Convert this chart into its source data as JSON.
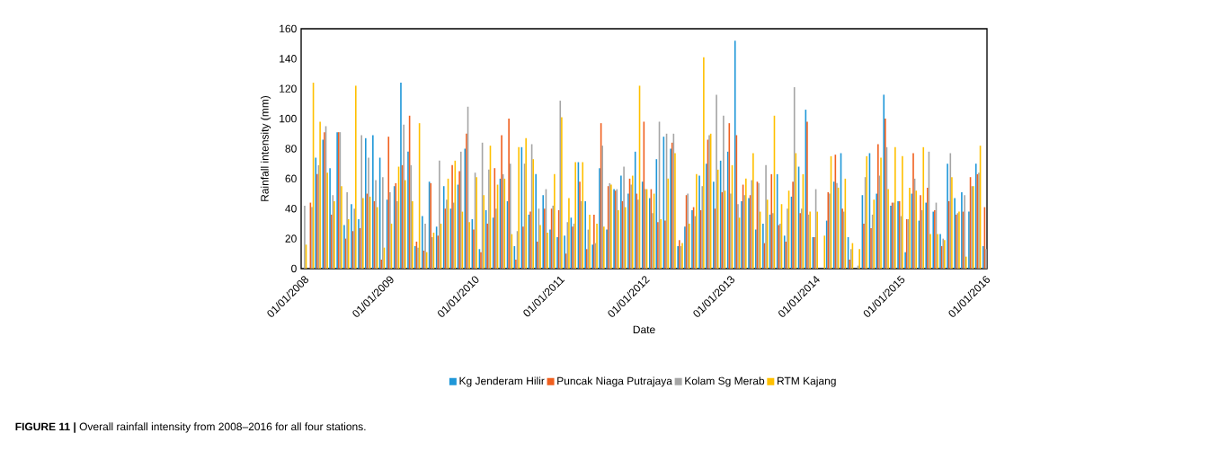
{
  "chart_data": {
    "type": "bar",
    "xlabel": "Date",
    "ylabel": "Rainfall intensity (mm)",
    "x": [
      "2008-01",
      "2008-02",
      "2008-03",
      "2008-04",
      "2008-05",
      "2008-06",
      "2008-07",
      "2008-08",
      "2008-09",
      "2008-10",
      "2008-11",
      "2008-12",
      "2009-01",
      "2009-02",
      "2009-03",
      "2009-04",
      "2009-05",
      "2009-06",
      "2009-07",
      "2009-08",
      "2009-09",
      "2009-10",
      "2009-11",
      "2009-12",
      "2010-01",
      "2010-02",
      "2010-03",
      "2010-04",
      "2010-05",
      "2010-06",
      "2010-07",
      "2010-08",
      "2010-09",
      "2010-10",
      "2010-11",
      "2010-12",
      "2011-01",
      "2011-02",
      "2011-03",
      "2011-04",
      "2011-05",
      "2011-06",
      "2011-07",
      "2011-08",
      "2011-09",
      "2011-10",
      "2011-11",
      "2011-12",
      "2012-01",
      "2012-02",
      "2012-03",
      "2012-04",
      "2012-05",
      "2012-06",
      "2012-07",
      "2012-08",
      "2012-09",
      "2012-10",
      "2012-11",
      "2012-12",
      "2013-01",
      "2013-02",
      "2013-03",
      "2013-04",
      "2013-05",
      "2013-06",
      "2013-07",
      "2013-08",
      "2013-09",
      "2013-10",
      "2013-11",
      "2013-12",
      "2014-01",
      "2014-02",
      "2014-03",
      "2014-04",
      "2014-05",
      "2014-06",
      "2014-07",
      "2014-08",
      "2014-09",
      "2014-10",
      "2014-11",
      "2014-12",
      "2015-01",
      "2015-02",
      "2015-03",
      "2015-04",
      "2015-05",
      "2015-06",
      "2015-07",
      "2015-08",
      "2015-09",
      "2015-10",
      "2015-11",
      "2015-12",
      "2016-01"
    ],
    "series": [
      {
        "name": "Kg Jenderam Hilir",
        "color": "#1f97d8",
        "values": [
          null,
          null,
          74,
          86,
          67,
          91,
          29,
          43,
          33,
          87,
          89,
          74,
          46,
          55,
          124,
          78,
          15,
          35,
          58,
          28,
          55,
          40,
          56,
          80,
          33,
          13,
          39,
          34,
          60,
          45,
          15,
          81,
          36,
          63,
          49,
          26,
          21,
          22,
          34,
          71,
          45,
          16,
          67,
          26,
          53,
          62,
          50,
          78,
          58,
          47,
          73,
          88,
          80,
          15,
          28,
          39,
          62,
          70,
          58,
          72,
          78,
          152,
          45,
          47,
          26,
          30,
          36,
          63,
          22,
          48,
          68,
          106,
          21,
          null,
          32,
          58,
          77,
          21,
          null,
          49,
          77,
          50,
          116,
          42,
          45,
          11,
          50,
          32,
          44,
          38,
          23,
          70,
          47,
          51,
          38,
          70,
          15
        ]
      },
      {
        "name": "Puncak Niaga Putrajaya",
        "color": "#f0601f",
        "values": [
          null,
          44,
          63,
          91,
          36,
          91,
          20,
          25,
          27,
          50,
          45,
          6,
          88,
          57,
          69,
          102,
          18,
          12,
          57,
          22,
          40,
          69,
          65,
          90,
          26,
          11,
          30,
          67,
          89,
          100,
          6,
          28,
          38,
          18,
          40,
          40,
          39,
          10,
          28,
          58,
          13,
          36,
          97,
          55,
          52,
          45,
          60,
          50,
          98,
          53,
          31,
          32,
          84,
          19,
          49,
          41,
          39,
          86,
          40,
          51,
          97,
          89,
          56,
          49,
          58,
          17,
          63,
          29,
          18,
          58,
          37,
          98,
          21,
          null,
          51,
          76,
          40,
          6,
          null,
          30,
          27,
          83,
          100,
          44,
          45,
          33,
          77,
          49,
          54,
          39,
          15,
          45,
          36,
          38,
          61,
          63,
          41
        ]
      },
      {
        "name": "Kolam Sg Merab",
        "color": "#a5a5a5",
        "values": [
          42,
          41,
          69,
          95,
          49,
          91,
          51,
          40,
          89,
          74,
          59,
          61,
          51,
          45,
          96,
          69,
          14,
          30,
          21,
          72,
          46,
          44,
          78,
          108,
          64,
          84,
          66,
          40,
          63,
          70,
          25,
          70,
          83,
          40,
          53,
          42,
          112,
          31,
          30,
          45,
          26,
          17,
          82,
          57,
          53,
          68,
          56,
          46,
          53,
          37,
          98,
          90,
          90,
          15,
          50,
          35,
          55,
          89,
          116,
          102,
          50,
          43,
          49,
          59,
          57,
          69,
          37,
          30,
          40,
          121,
          40,
          36,
          53,
          null,
          50,
          57,
          38,
          13,
          2,
          61,
          36,
          62,
          81,
          44,
          35,
          33,
          60,
          39,
          78,
          44,
          20,
          77,
          37,
          49,
          55,
          64,
          13
        ]
      },
      {
        "name": "RTM Kajang",
        "color": "#ffc000",
        "values": [
          16,
          124,
          98,
          64,
          45,
          55,
          33,
          122,
          47,
          48,
          41,
          14,
          30,
          68,
          59,
          45,
          97,
          11,
          24,
          30,
          60,
          72,
          38,
          31,
          61,
          49,
          82,
          56,
          60,
          23,
          81,
          87,
          73,
          29,
          24,
          63,
          101,
          47,
          71,
          71,
          36,
          30,
          28,
          56,
          39,
          41,
          62,
          122,
          53,
          50,
          33,
          60,
          77,
          17,
          30,
          63,
          141,
          90,
          66,
          52,
          69,
          34,
          60,
          77,
          38,
          46,
          102,
          43,
          52,
          77,
          63,
          38,
          38,
          22,
          75,
          54,
          60,
          17,
          13,
          75,
          46,
          74,
          53,
          81,
          75,
          54,
          52,
          81,
          23,
          23,
          19,
          61,
          38,
          8,
          55,
          82,
          null
        ]
      }
    ],
    "xlim": [
      "2007-12-20",
      "2016-01-08"
    ],
    "xticks": [
      {
        "value": "2008-01",
        "label": "01/01/2008"
      },
      {
        "value": "2009-01",
        "label": "01/01/2009"
      },
      {
        "value": "2010-01",
        "label": "01/01/2010"
      },
      {
        "value": "2011-01",
        "label": "01/01/2011"
      },
      {
        "value": "2012-01",
        "label": "01/01/2012"
      },
      {
        "value": "2013-01",
        "label": "01/01/2013"
      },
      {
        "value": "2014-01",
        "label": "01/01/2014"
      },
      {
        "value": "2015-01",
        "label": "01/01/2015"
      },
      {
        "value": "2016-01",
        "label": "01/01/2016"
      }
    ],
    "ylim": [
      0,
      160
    ],
    "yticks": [
      0,
      20,
      40,
      60,
      80,
      100,
      120,
      140,
      160
    ],
    "legend": "bottom",
    "annotations": [
      "**FIGURE 11 |** Overall rainfall intensity from 2008–2016 for all four stations."
    ]
  }
}
